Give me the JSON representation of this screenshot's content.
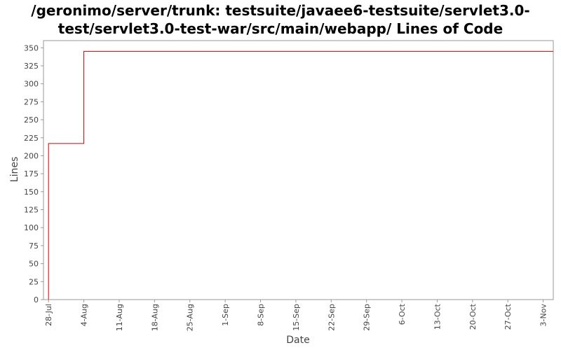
{
  "chart_data": {
    "type": "line",
    "title_lines": [
      "/geronimo/server/trunk: testsuite/javaee6-testsuite/servlet3.0-",
      "test/servlet3.0-test-war/src/main/webapp/ Lines of Code"
    ],
    "xlabel": "Date",
    "ylabel": "Lines",
    "ylim": [
      0,
      360
    ],
    "yticks": [
      0,
      25,
      50,
      75,
      100,
      125,
      150,
      175,
      200,
      225,
      250,
      275,
      300,
      325,
      350
    ],
    "xticks": [
      "28-Jul",
      "4-Aug",
      "11-Aug",
      "18-Aug",
      "25-Aug",
      "1-Sep",
      "8-Sep",
      "15-Sep",
      "22-Sep",
      "29-Sep",
      "6-Oct",
      "13-Oct",
      "20-Oct",
      "27-Oct",
      "3-Nov"
    ],
    "xlim": [
      "27-Jul",
      "5-Nov"
    ],
    "grid": false,
    "line_color": "#cc0000",
    "series": [
      {
        "step": true,
        "points": [
          {
            "x": "28-Jul",
            "y": 0
          },
          {
            "x": "28-Jul",
            "y": 217
          },
          {
            "x": "4-Aug",
            "y": 217
          },
          {
            "x": "4-Aug",
            "y": 345
          },
          {
            "x": "5-Nov",
            "y": 345
          }
        ]
      }
    ]
  }
}
